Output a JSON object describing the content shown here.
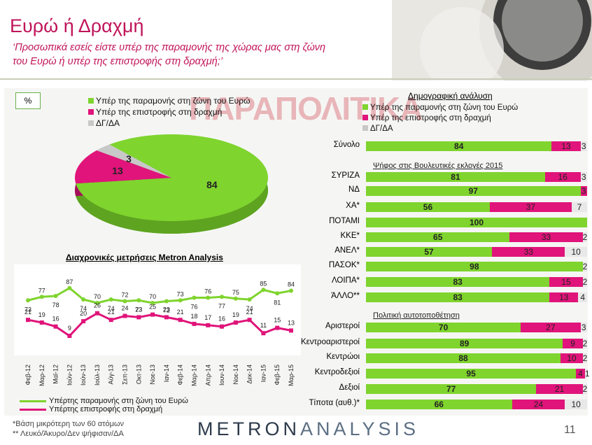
{
  "title": "Ευρώ ή Δραχμή",
  "subtitle": "‘Προσωπικά εσείς είστε υπέρ της παραμονής της χώρας μας στη ζώνη του Ευρώ ή υπέρ της επιστροφής στη δραχμή;’",
  "watermark": "ΠΑΡΑΠΟΛΙΤΙΚΑ",
  "pct_box": "%",
  "colors": {
    "green": "#7fd42e",
    "pink": "#e0147a",
    "grey": "#c8c8c8",
    "title": "#c0145a"
  },
  "pie": {
    "legend": [
      "Υπέρ της παραμονής στη ζώνη του Ευρώ",
      "Υπέρ της επιστροφής στη δραχμή",
      "ΔΓ/ΔΑ"
    ],
    "values": [
      84,
      13,
      3
    ]
  },
  "trend": {
    "title": "Διαχρονικές μετρήσεις Metron Analysis",
    "legend": [
      "Υπέρτης παραμονής στη ζώνη του Ευρώ",
      "Υπέρτης επιστροφής στη δραχμή"
    ]
  },
  "demo": {
    "title": "Δημογραφική ανάλυση",
    "legend": [
      "Υπέρ της παραμονής στη ζώνη του Ευρώ",
      "Υπέρ της επιστροφής στη δραχμή",
      "ΔΓ/ΔΑ"
    ],
    "vote_title": "Ψήφος στις Βουλευτικές εκλογές 2015",
    "ideo_title": "Πολιτική αυτοτοποθέτηση"
  },
  "chart_data": [
    {
      "type": "pie",
      "values": [
        84,
        13,
        3
      ],
      "categories": [
        "Υπέρ της παραμονής στη ζώνη του Ευρώ",
        "Υπέρ της επιστροφής στη δραχμή",
        "ΔΓ/ΔΑ"
      ]
    },
    {
      "type": "line",
      "title": "Διαχρονικές μετρήσεις Metron Analysis",
      "categories": [
        "Φεβ-12",
        "Μαρ-12",
        "Μαϊ-12",
        "Ιούν-12",
        "Ιούν-13",
        "Ιούλ-13",
        "Αύγ-13",
        "Σεπ-13",
        "Οκτ-13",
        "Νοε-13",
        "Ιαν-14",
        "Φεβ-14",
        "Μαρ-14",
        "Απρ-14",
        "Ιουν-14",
        "Νοε-14",
        "Δεκ-14",
        "Ιαν-15",
        "Φεβ-15",
        "Μαρ-15"
      ],
      "series": [
        {
          "name": "Υπέρτης παραμονής στη ζώνη του Ευρώ",
          "values": [
            73,
            77,
            78,
            87,
            74,
            70,
            74,
            72,
            73,
            70,
            72,
            73,
            76,
            76,
            77,
            75,
            74,
            85,
            81,
            84
          ]
        },
        {
          "name": "Υπέρτης επιστροφής στη δραχμή",
          "values": [
            21,
            19,
            16,
            9,
            20,
            26,
            21,
            24,
            23,
            25,
            23,
            21,
            18,
            17,
            16,
            19,
            21,
            11,
            15,
            13
          ]
        }
      ]
    },
    {
      "type": "bar",
      "stacked": true,
      "orientation": "horizontal",
      "categories": [
        "Σύνολο",
        "ΣΥΡΙΖΑ",
        "ΝΔ",
        "ΧΑ*",
        "ΠΟΤΑΜΙ",
        "ΚΚΕ*",
        "ΑΝΕΛ*",
        "ΠΑΣΟΚ*",
        "ΛΟΙΠΑ*",
        "ΆΛΛΟ**",
        "Αριστεροί",
        "Κεντροαριστεροί",
        "Κεντρώοι",
        "Κεντροδεξιοί",
        "Δεξιοί",
        "Τίποτα (αυθ.)*"
      ],
      "series": [
        {
          "name": "Υπέρ της παραμονής στη ζώνη του Ευρώ",
          "values": [
            84,
            81,
            97,
            56,
            100,
            65,
            57,
            98,
            83,
            83,
            70,
            89,
            88,
            95,
            77,
            66
          ]
        },
        {
          "name": "Υπέρ της επιστροφής στη δραχμή",
          "values": [
            13,
            16,
            3,
            37,
            0,
            33,
            33,
            0,
            15,
            13,
            27,
            9,
            10,
            4,
            21,
            24
          ]
        },
        {
          "name": "ΔΓ/ΔΑ",
          "values": [
            3,
            3,
            0,
            7,
            0,
            2,
            10,
            2,
            2,
            4,
            3,
            2,
            2,
            1,
            2,
            10
          ]
        }
      ]
    }
  ],
  "footer": {
    "note1": "*Βάση μικρότερη των 60 ατόμων",
    "note2": "** Λευκό/Άκυρο/Δεν ψήφισαν/ΔΑ",
    "logo_a": "METRON",
    "logo_b": "ANALYSIS",
    "page": "11"
  }
}
